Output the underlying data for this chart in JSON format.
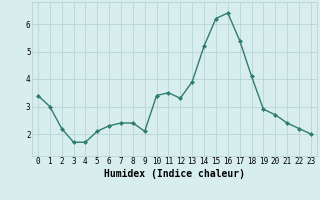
{
  "x": [
    0,
    1,
    2,
    3,
    4,
    5,
    6,
    7,
    8,
    9,
    10,
    11,
    12,
    13,
    14,
    15,
    16,
    17,
    18,
    19,
    20,
    21,
    22,
    23
  ],
  "y": [
    3.4,
    3.0,
    2.2,
    1.7,
    1.7,
    2.1,
    2.3,
    2.4,
    2.4,
    2.1,
    3.4,
    3.5,
    3.3,
    3.9,
    5.2,
    6.2,
    6.4,
    5.4,
    4.1,
    2.9,
    2.7,
    2.4,
    2.2,
    2.0
  ],
  "line_color": "#2e7d6e",
  "marker": "D",
  "marker_size": 2,
  "linewidth": 1.0,
  "xlabel": "Humidex (Indice chaleur)",
  "xlabel_fontsize": 7,
  "xlim": [
    -0.5,
    23.5
  ],
  "ylim": [
    1.2,
    6.8
  ],
  "yticks": [
    2,
    3,
    4,
    5,
    6
  ],
  "xticks": [
    0,
    1,
    2,
    3,
    4,
    5,
    6,
    7,
    8,
    9,
    10,
    11,
    12,
    13,
    14,
    15,
    16,
    17,
    18,
    19,
    20,
    21,
    22,
    23
  ],
  "background_color": "#d8eeee",
  "grid_color": "#b8d4d4",
  "tick_fontsize": 5.5,
  "title": ""
}
